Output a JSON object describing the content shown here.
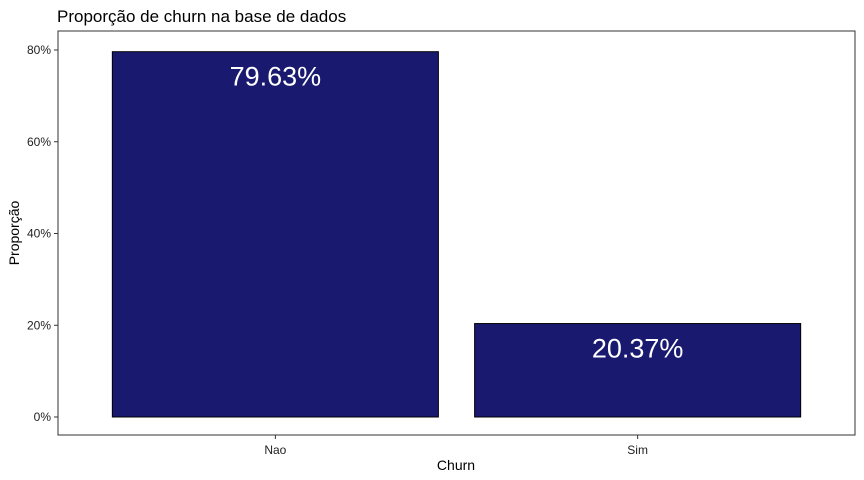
{
  "chart_data": {
    "type": "bar",
    "title": "Proporção de churn na base de dados",
    "xlabel": "Churn",
    "ylabel": "Proporção",
    "categories": [
      "Nao",
      "Sim"
    ],
    "values": [
      0.7963,
      0.2037
    ],
    "data_labels": [
      "79.63%",
      "20.37%"
    ],
    "ylim": [
      0,
      0.8
    ],
    "yticks": [
      0,
      0.2,
      0.4,
      0.6,
      0.8
    ],
    "ytick_labels": [
      "0%",
      "20%",
      "40%",
      "60%",
      "80%"
    ],
    "grid": false,
    "legend": "none",
    "colors": {
      "bar_fill": "#191970",
      "bar_stroke": "#000000",
      "panel_border": "#333333"
    }
  }
}
